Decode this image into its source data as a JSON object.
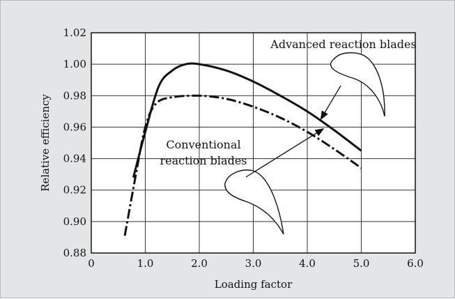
{
  "chart_data": {
    "type": "line",
    "xlabel": "Loading factor",
    "ylabel": "Relative efficiency",
    "xlim": [
      0,
      6.0
    ],
    "ylim": [
      0.88,
      1.02
    ],
    "xticks": [
      "0",
      "1.0",
      "2.0",
      "3.0",
      "4.0",
      "5.0",
      "6.0"
    ],
    "yticks": [
      "0.88",
      "0.90",
      "0.92",
      "0.94",
      "0.96",
      "0.98",
      "1.00",
      "1.02"
    ],
    "grid": true,
    "series": [
      {
        "name": "Advanced reaction blades",
        "style": "solid",
        "x": [
          0.78,
          1.0,
          1.25,
          1.5,
          1.75,
          2.0,
          2.5,
          3.0,
          3.5,
          4.0,
          4.5,
          5.0
        ],
        "y": [
          0.928,
          0.957,
          0.986,
          0.996,
          1.0,
          1.0,
          0.996,
          0.989,
          0.98,
          0.97,
          0.958,
          0.945
        ]
      },
      {
        "name": "Conventional reaction blades",
        "style": "dash-dot",
        "x": [
          0.62,
          0.8,
          1.0,
          1.2,
          1.5,
          2.0,
          2.5,
          3.0,
          3.5,
          4.0,
          4.5,
          5.0
        ],
        "y": [
          0.891,
          0.925,
          0.96,
          0.975,
          0.979,
          0.98,
          0.978,
          0.973,
          0.966,
          0.957,
          0.946,
          0.934
        ]
      }
    ],
    "annotations": [
      {
        "text": "Advanced reaction blades",
        "lines": [
          "Advanced reaction blades"
        ],
        "points_to": [
          4.25,
          0.965
        ]
      },
      {
        "text": "Conventional reaction blades",
        "lines": [
          "Conventional",
          "reaction blades"
        ],
        "points_to": [
          4.3,
          0.959
        ]
      }
    ]
  }
}
